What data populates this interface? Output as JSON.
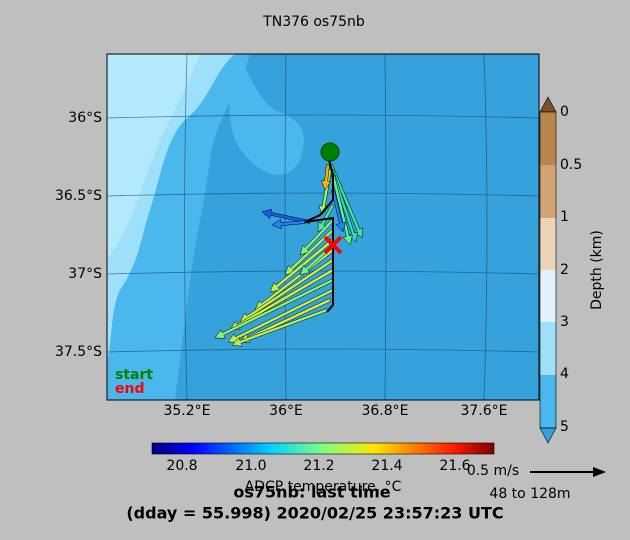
{
  "title": "TN376 os75nb",
  "map": {
    "lat_labels": [
      "36°S",
      "36.5°S",
      "37°S",
      "37.5°S"
    ],
    "lon_labels": [
      "35.2°E",
      "36°E",
      "36.8°E",
      "37.6°E"
    ],
    "start_label": "start",
    "end_label": "end"
  },
  "depth_colorbar": {
    "label": "Depth (km)",
    "ticks": [
      "0",
      "0.5",
      "1",
      "2",
      "3",
      "4",
      "5"
    ]
  },
  "temperature_colorbar": {
    "label": "ADCP temperature, °C",
    "ticks": [
      "20.8",
      "21.0",
      "21.2",
      "21.4",
      "21.6"
    ]
  },
  "scale": {
    "speed": "0.5 m/s",
    "depth_range": "48 to 128m"
  },
  "footer": {
    "line1": "os75nb: last time",
    "line2": "(dday = 55.998) 2020/02/25 23:57:23 UTC"
  }
}
